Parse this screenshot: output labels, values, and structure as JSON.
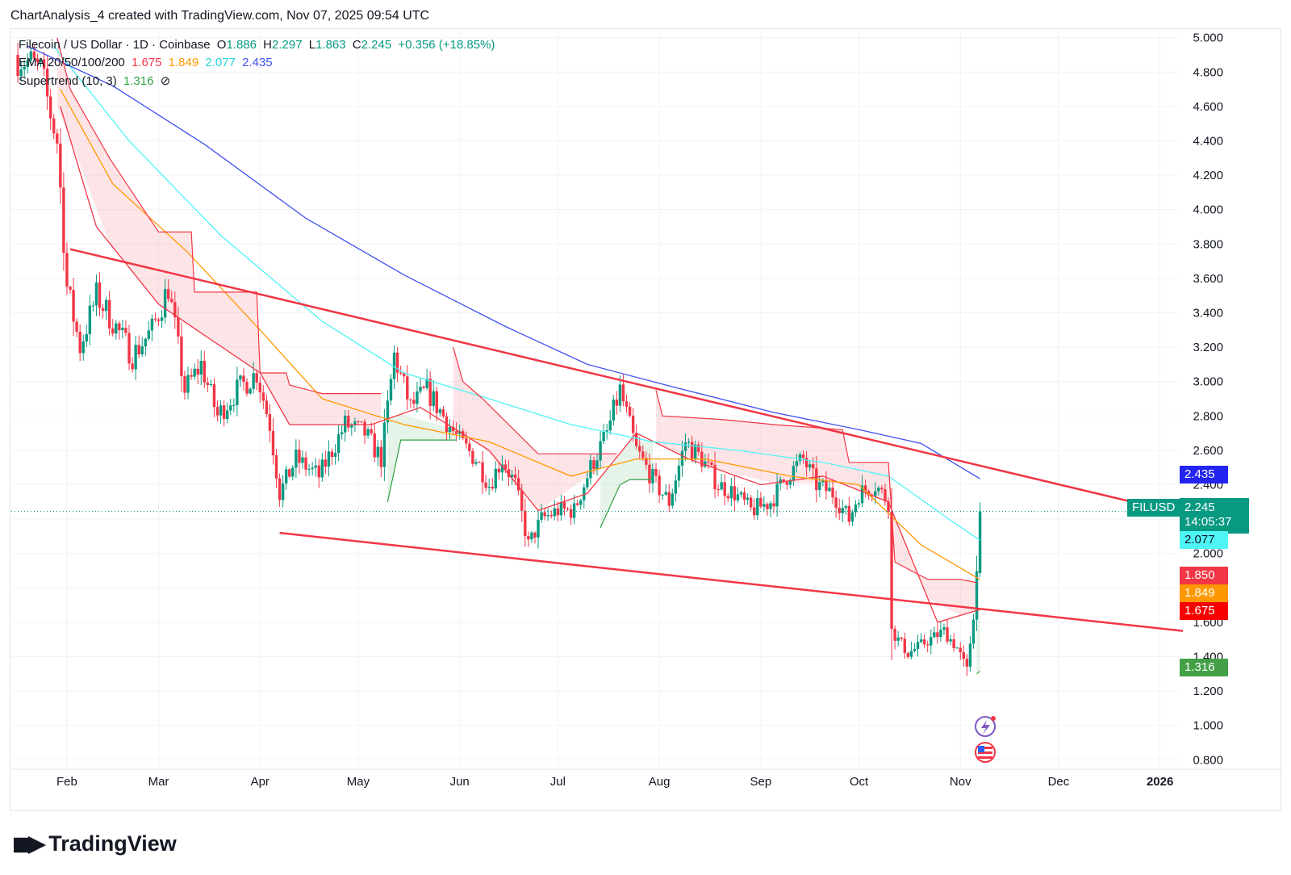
{
  "caption": "ChartAnalysis_4 created with TradingView.com, Nov 07, 2025 09:54 UTC",
  "legend": {
    "title": "Filecoin / US Dollar · 1D · Coinbase",
    "open_label": "O",
    "open": "1.886",
    "high_label": "H",
    "high": "2.297",
    "low_label": "L",
    "low": "1.863",
    "close_label": "C",
    "close": "2.245",
    "change": "+0.356 (+18.85%)",
    "ema_label": "EMA 20/50/100/200",
    "ema20": "1.675",
    "ema50": "1.849",
    "ema100": "2.077",
    "ema200": "2.435",
    "supertrend_label": "Supertrend (10, 3)",
    "supertrend": "1.316",
    "supertrend_icon": "hidden-eye-icon"
  },
  "badges": {
    "symbol": "FILUSD",
    "price": "2.245",
    "countdown": "14:05:37",
    "ema200": "2.435",
    "ema100": "2.077",
    "level_red": "1.850",
    "ema50": "1.849",
    "ema20": "1.675",
    "supertrend": "1.316"
  },
  "brand": "TradingView",
  "colors": {
    "up": "#089981",
    "down": "#f23645",
    "ema20": "#f23645",
    "ema50": "#ff9800",
    "ema100": "#4ff4f4",
    "ema200": "#3f4ff0",
    "supertrend_up": "#2ea043",
    "supertrend_down": "#f23645",
    "trendline": "#f23645"
  },
  "chart_data": {
    "type": "candlestick",
    "ylim": [
      0.75,
      5.05
    ],
    "y_ticks": [
      "5.000",
      "4.800",
      "4.600",
      "4.400",
      "4.200",
      "4.000",
      "3.800",
      "3.600",
      "3.400",
      "3.200",
      "3.000",
      "2.800",
      "2.600",
      "2.400",
      "2.200",
      "2.000",
      "1.800",
      "1.600",
      "1.400",
      "1.200",
      "1.000",
      "0.800"
    ],
    "x_range": [
      "2025-01-15",
      "2026-01-07"
    ],
    "x_ticks": [
      {
        "label": "Feb",
        "date": "2025-02-01"
      },
      {
        "label": "Mar",
        "date": "2025-03-01"
      },
      {
        "label": "Apr",
        "date": "2025-04-01"
      },
      {
        "label": "May",
        "date": "2025-05-01"
      },
      {
        "label": "Jun",
        "date": "2025-06-01"
      },
      {
        "label": "Jul",
        "date": "2025-07-01"
      },
      {
        "label": "Aug",
        "date": "2025-08-01"
      },
      {
        "label": "Sep",
        "date": "2025-09-01"
      },
      {
        "label": "Oct",
        "date": "2025-10-01"
      },
      {
        "label": "Nov",
        "date": "2025-11-01"
      },
      {
        "label": "Dec",
        "date": "2025-12-01"
      },
      {
        "label": "2026",
        "date": "2026-01-01"
      }
    ],
    "close_anchors": [
      [
        "2025-01-17",
        4.9
      ],
      [
        "2025-01-24",
        4.8
      ],
      [
        "2025-01-29",
        4.4
      ],
      [
        "2025-02-01",
        3.55
      ],
      [
        "2025-02-05",
        3.2
      ],
      [
        "2025-02-10",
        3.5
      ],
      [
        "2025-02-15",
        3.35
      ],
      [
        "2025-02-21",
        3.15
      ],
      [
        "2025-02-27",
        3.3
      ],
      [
        "2025-03-04",
        3.55
      ],
      [
        "2025-03-09",
        2.95
      ],
      [
        "2025-03-14",
        3.1
      ],
      [
        "2025-03-19",
        2.8
      ],
      [
        "2025-03-25",
        2.95
      ],
      [
        "2025-03-31",
        3.05
      ],
      [
        "2025-04-04",
        2.75
      ],
      [
        "2025-04-07",
        2.35
      ],
      [
        "2025-04-12",
        2.55
      ],
      [
        "2025-04-19",
        2.45
      ],
      [
        "2025-04-27",
        2.75
      ],
      [
        "2025-05-03",
        2.7
      ],
      [
        "2025-05-08",
        2.55
      ],
      [
        "2025-05-12",
        3.15
      ],
      [
        "2025-05-17",
        2.85
      ],
      [
        "2025-05-22",
        2.95
      ],
      [
        "2025-05-27",
        2.8
      ],
      [
        "2025-06-01",
        2.65
      ],
      [
        "2025-06-06",
        2.55
      ],
      [
        "2025-06-10",
        2.4
      ],
      [
        "2025-06-14",
        2.55
      ],
      [
        "2025-06-18",
        2.4
      ],
      [
        "2025-06-22",
        2.05
      ],
      [
        "2025-06-26",
        2.2
      ],
      [
        "2025-07-01",
        2.25
      ],
      [
        "2025-07-06",
        2.25
      ],
      [
        "2025-07-11",
        2.5
      ],
      [
        "2025-07-16",
        2.7
      ],
      [
        "2025-07-20",
        2.95
      ],
      [
        "2025-07-25",
        2.6
      ],
      [
        "2025-07-31",
        2.4
      ],
      [
        "2025-08-04",
        2.3
      ],
      [
        "2025-08-09",
        2.65
      ],
      [
        "2025-08-14",
        2.55
      ],
      [
        "2025-08-19",
        2.4
      ],
      [
        "2025-08-24",
        2.35
      ],
      [
        "2025-08-29",
        2.25
      ],
      [
        "2025-09-04",
        2.3
      ],
      [
        "2025-09-09",
        2.45
      ],
      [
        "2025-09-14",
        2.55
      ],
      [
        "2025-09-18",
        2.4
      ],
      [
        "2025-09-23",
        2.35
      ],
      [
        "2025-09-28",
        2.2
      ],
      [
        "2025-10-01",
        2.35
      ],
      [
        "2025-10-06",
        2.4
      ],
      [
        "2025-10-10",
        2.3
      ],
      [
        "2025-10-11",
        1.55
      ],
      [
        "2025-10-16",
        1.42
      ],
      [
        "2025-10-21",
        1.48
      ],
      [
        "2025-10-27",
        1.55
      ],
      [
        "2025-10-31",
        1.45
      ],
      [
        "2025-11-03",
        1.32
      ],
      [
        "2025-11-05",
        1.65
      ],
      [
        "2025-11-06",
        1.89
      ],
      [
        "2025-11-07",
        2.245
      ]
    ],
    "series": [
      {
        "name": "EMA 20",
        "points": [
          [
            "2025-01-30",
            4.6
          ],
          [
            "2025-02-10",
            3.9
          ],
          [
            "2025-03-01",
            3.45
          ],
          [
            "2025-04-01",
            3.05
          ],
          [
            "2025-04-10",
            2.75
          ],
          [
            "2025-05-05",
            2.75
          ],
          [
            "2025-05-20",
            2.85
          ],
          [
            "2025-06-10",
            2.6
          ],
          [
            "2025-06-25",
            2.25
          ],
          [
            "2025-07-10",
            2.35
          ],
          [
            "2025-07-25",
            2.7
          ],
          [
            "2025-08-10",
            2.55
          ],
          [
            "2025-09-01",
            2.4
          ],
          [
            "2025-09-20",
            2.45
          ],
          [
            "2025-10-10",
            2.3
          ],
          [
            "2025-10-25",
            1.6
          ],
          [
            "2025-11-07",
            1.675
          ]
        ]
      },
      {
        "name": "EMA 50",
        "points": [
          [
            "2025-01-30",
            4.7
          ],
          [
            "2025-02-15",
            4.15
          ],
          [
            "2025-03-10",
            3.75
          ],
          [
            "2025-04-01",
            3.3
          ],
          [
            "2025-04-20",
            2.9
          ],
          [
            "2025-05-15",
            2.75
          ],
          [
            "2025-06-10",
            2.65
          ],
          [
            "2025-07-05",
            2.45
          ],
          [
            "2025-07-25",
            2.55
          ],
          [
            "2025-08-15",
            2.55
          ],
          [
            "2025-09-10",
            2.45
          ],
          [
            "2025-10-01",
            2.4
          ],
          [
            "2025-10-20",
            2.05
          ],
          [
            "2025-11-07",
            1.849
          ]
        ]
      },
      {
        "name": "EMA 100",
        "points": [
          [
            "2025-01-28",
            4.95
          ],
          [
            "2025-02-20",
            4.4
          ],
          [
            "2025-03-20",
            3.85
          ],
          [
            "2025-04-20",
            3.35
          ],
          [
            "2025-05-15",
            3.05
          ],
          [
            "2025-06-10",
            2.9
          ],
          [
            "2025-07-05",
            2.75
          ],
          [
            "2025-07-30",
            2.65
          ],
          [
            "2025-08-25",
            2.6
          ],
          [
            "2025-09-20",
            2.53
          ],
          [
            "2025-10-10",
            2.45
          ],
          [
            "2025-10-30",
            2.18
          ],
          [
            "2025-11-07",
            2.077
          ]
        ]
      },
      {
        "name": "EMA 200",
        "points": [
          [
            "2025-01-20",
            4.95
          ],
          [
            "2025-02-15",
            4.72
          ],
          [
            "2025-03-15",
            4.38
          ],
          [
            "2025-04-15",
            3.95
          ],
          [
            "2025-05-15",
            3.62
          ],
          [
            "2025-06-15",
            3.32
          ],
          [
            "2025-07-10",
            3.1
          ],
          [
            "2025-08-05",
            2.97
          ],
          [
            "2025-09-05",
            2.82
          ],
          [
            "2025-10-01",
            2.72
          ],
          [
            "2025-10-20",
            2.64
          ],
          [
            "2025-11-07",
            2.435
          ]
        ]
      }
    ],
    "supertrend_down": [
      [
        "2025-01-29",
        5.0
      ],
      [
        "2025-02-02",
        4.7
      ],
      [
        "2025-02-14",
        4.3
      ],
      [
        "2025-03-01",
        3.87
      ],
      [
        "2025-03-11",
        3.87
      ],
      [
        "2025-03-12",
        3.52
      ],
      [
        "2025-03-31",
        3.52
      ],
      [
        "2025-04-01",
        3.05
      ],
      [
        "2025-04-09",
        3.05
      ],
      [
        "2025-04-10",
        2.98
      ],
      [
        "2025-04-20",
        2.93
      ],
      [
        "2025-05-08",
        2.93
      ],
      [
        "break",
        0
      ],
      [
        "2025-05-30",
        3.2
      ],
      [
        "2025-06-02",
        3.0
      ],
      [
        "2025-06-08",
        2.9
      ],
      [
        "2025-06-25",
        2.58
      ],
      [
        "2025-07-19",
        2.58
      ],
      [
        "break",
        0
      ],
      [
        "2025-07-31",
        2.95
      ],
      [
        "2025-08-02",
        2.8
      ],
      [
        "2025-08-20",
        2.78
      ],
      [
        "2025-09-05",
        2.75
      ],
      [
        "2025-09-26",
        2.72
      ],
      [
        "2025-09-28",
        2.53
      ],
      [
        "2025-10-10",
        2.53
      ],
      [
        "2025-10-12",
        1.95
      ],
      [
        "2025-10-22",
        1.85
      ],
      [
        "2025-11-01",
        1.85
      ],
      [
        "2025-11-06",
        1.83
      ]
    ],
    "supertrend_up": [
      [
        "2025-05-10",
        2.3
      ],
      [
        "2025-05-14",
        2.66
      ],
      [
        "2025-05-31",
        2.66
      ],
      [
        "break",
        0
      ],
      [
        "2025-07-14",
        2.15
      ],
      [
        "2025-07-20",
        2.4
      ],
      [
        "2025-07-23",
        2.43
      ],
      [
        "2025-07-30",
        2.43
      ],
      [
        "break",
        0
      ],
      [
        "2025-11-06",
        1.3
      ],
      [
        "2025-11-07",
        1.316
      ]
    ],
    "trendlines": [
      {
        "from": [
          "2025-02-02",
          3.77
        ],
        "to": [
          "2026-01-08",
          2.23
        ]
      },
      {
        "from": [
          "2025-04-07",
          2.12
        ],
        "to": [
          "2026-01-08",
          1.55
        ]
      }
    ],
    "last_price_line": 2.245
  }
}
